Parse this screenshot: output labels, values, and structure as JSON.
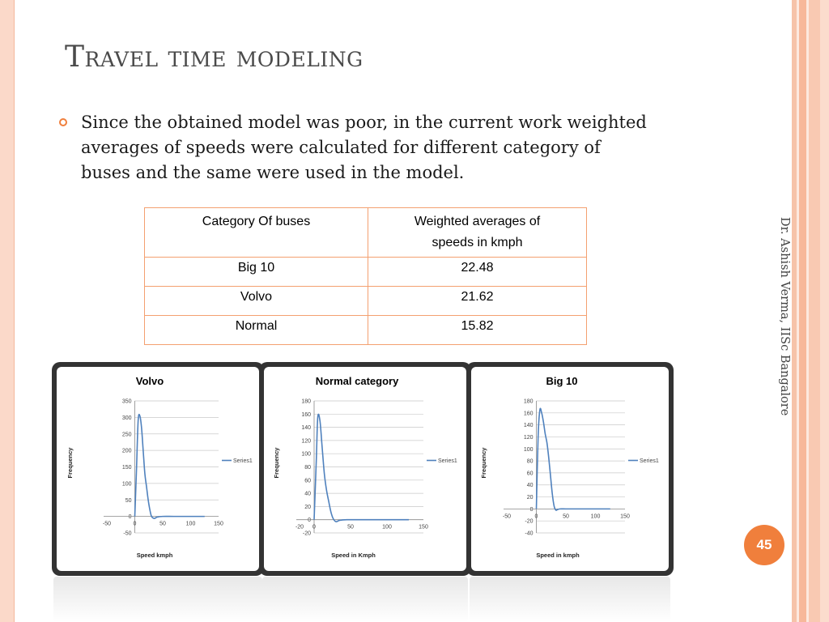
{
  "slide": {
    "title": "Travel time modeling",
    "bullet": "Since the obtained model was poor, in the current work weighted averages of speeds were calculated for different category of buses and the same were used in the model.",
    "credit": "Dr. Ashish Verma, IISc Bangalore",
    "page_number": "45",
    "accent_color": "#f07f3c"
  },
  "table": {
    "headers": [
      "Category Of buses",
      "Weighted averages of speeds in kmph"
    ],
    "rows": [
      [
        "Big 10",
        "22.48"
      ],
      [
        "Volvo",
        "21.62"
      ],
      [
        "Normal",
        "15.82"
      ]
    ]
  },
  "chart_data": [
    {
      "type": "line",
      "title": "Volvo",
      "xlabel": "Speed kmph",
      "ylabel": "Frequency",
      "xlim": [
        -50,
        150
      ],
      "ylim": [
        -50,
        350
      ],
      "xticks": [
        -50,
        0,
        50,
        100,
        150
      ],
      "yticks": [
        -50,
        0,
        50,
        100,
        150,
        200,
        250,
        300,
        350
      ],
      "grid": true,
      "legend": "right",
      "series": [
        {
          "name": "Series1",
          "x": [
            0,
            3,
            6,
            9,
            12,
            15,
            18,
            21,
            24,
            27,
            30,
            35,
            40,
            50,
            70,
            100,
            125
          ],
          "y": [
            0,
            140,
            290,
            305,
            270,
            200,
            130,
            90,
            50,
            20,
            0,
            -6,
            -2,
            0,
            0,
            0,
            0
          ]
        }
      ]
    },
    {
      "type": "line",
      "title": "Normal category",
      "xlabel": "Speed in Kmph",
      "ylabel": "Frequency",
      "xlim": [
        -20,
        150
      ],
      "ylim": [
        -20,
        180
      ],
      "xticks": [
        -20,
        0,
        50,
        100,
        150
      ],
      "yticks": [
        -20,
        0,
        20,
        40,
        60,
        80,
        100,
        120,
        140,
        160,
        180
      ],
      "grid": true,
      "legend": "right",
      "series": [
        {
          "name": "Series1",
          "x": [
            0,
            3,
            5,
            8,
            11,
            14,
            17,
            20,
            23,
            26,
            30,
            35,
            45,
            70,
            100,
            130
          ],
          "y": [
            0,
            90,
            155,
            150,
            110,
            70,
            45,
            28,
            12,
            2,
            -3,
            -1,
            0,
            0,
            0,
            0
          ]
        }
      ]
    },
    {
      "type": "line",
      "title": "Big 10",
      "xlabel": "Speed in kmph",
      "ylabel": "Frequency",
      "xlim": [
        -50,
        150
      ],
      "ylim": [
        -40,
        180
      ],
      "xticks": [
        -50,
        0,
        50,
        100,
        150
      ],
      "yticks": [
        -40,
        -20,
        0,
        20,
        40,
        60,
        80,
        100,
        120,
        140,
        160,
        180
      ],
      "grid": true,
      "legend": "right",
      "series": [
        {
          "name": "Series1",
          "x": [
            0,
            3,
            6,
            9,
            12,
            15,
            18,
            21,
            24,
            27,
            30,
            33,
            36,
            40,
            50,
            70,
            100,
            125
          ],
          "y": [
            0,
            120,
            165,
            160,
            145,
            125,
            110,
            85,
            55,
            25,
            5,
            -2,
            -1,
            0,
            0,
            0,
            0,
            0
          ]
        }
      ]
    }
  ]
}
